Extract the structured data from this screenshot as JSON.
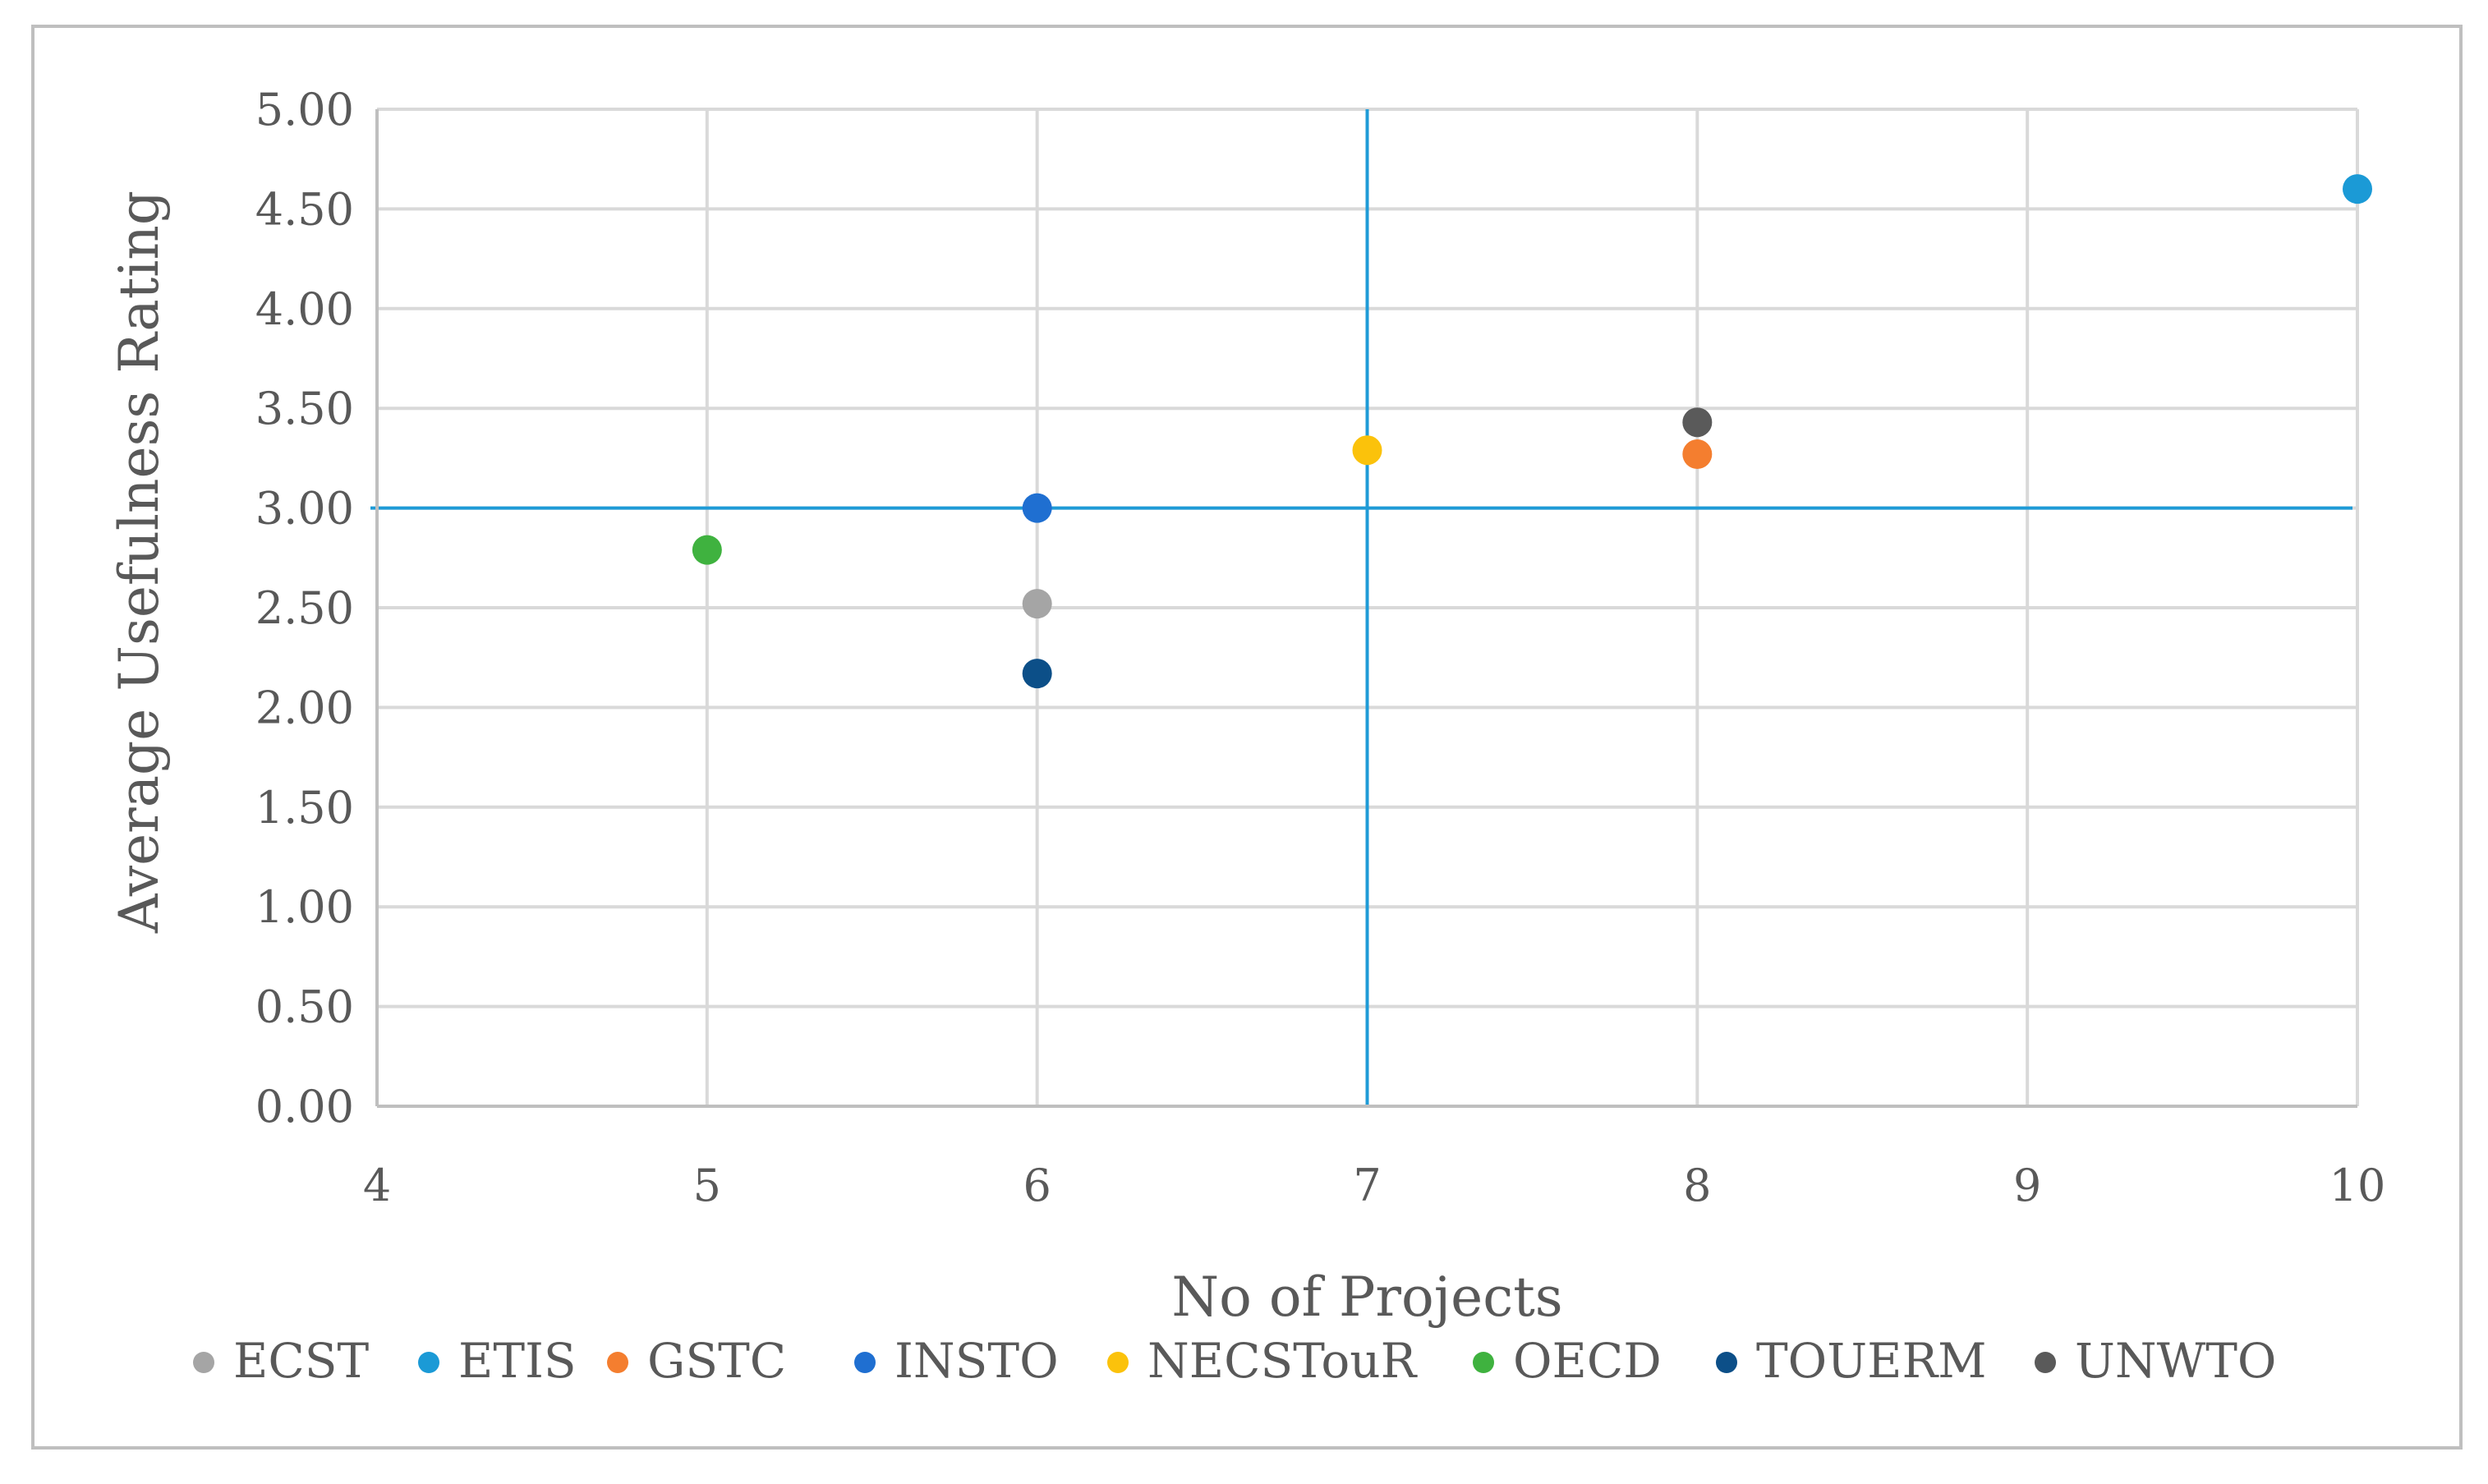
{
  "chart_data": {
    "type": "scatter",
    "title": "",
    "xlabel": "No of Projects",
    "ylabel": "Average Usefulness Rating",
    "xlim": [
      4,
      10
    ],
    "ylim": [
      0,
      5
    ],
    "x_ticks": [
      "4",
      "5",
      "6",
      "7",
      "8",
      "9",
      "10"
    ],
    "y_ticks": [
      "0.00",
      "0.50",
      "1.00",
      "1.50",
      "2.00",
      "2.50",
      "3.00",
      "3.50",
      "4.00",
      "4.50",
      "5.00"
    ],
    "grid": "vertical and horizontal",
    "legend_position": "bottom",
    "reference_lines": {
      "x": 7,
      "y": 3.0,
      "color": "#1f9bd7"
    },
    "series": [
      {
        "name": "ECST",
        "color": "#a5a5a5",
        "points": [
          {
            "x": 6,
            "y": 2.52
          }
        ]
      },
      {
        "name": "ETIS",
        "color": "#1b9ad6",
        "points": [
          {
            "x": 10,
            "y": 4.6
          }
        ]
      },
      {
        "name": "GSTC",
        "color": "#f47e2f",
        "points": [
          {
            "x": 8,
            "y": 3.27
          }
        ]
      },
      {
        "name": "INSTO",
        "color": "#1f6fd1",
        "points": [
          {
            "x": 6,
            "y": 3.0
          }
        ]
      },
      {
        "name": "NECSTouR",
        "color": "#fbc20b",
        "points": [
          {
            "x": 7,
            "y": 3.29
          }
        ]
      },
      {
        "name": "OECD",
        "color": "#3fb23f",
        "points": [
          {
            "x": 5,
            "y": 2.79
          }
        ]
      },
      {
        "name": "TOUERM",
        "color": "#0c4f88",
        "points": [
          {
            "x": 6,
            "y": 2.17
          }
        ]
      },
      {
        "name": "UNWTO",
        "color": "#5a5a5a",
        "points": [
          {
            "x": 8,
            "y": 3.43
          }
        ]
      }
    ]
  }
}
